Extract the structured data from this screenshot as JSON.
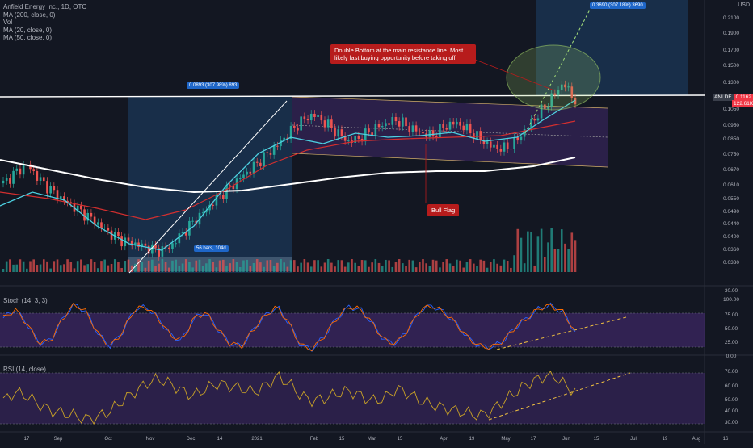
{
  "symbol_line": "Anfield Energy Inc., 1D, OTC",
  "indicators": [
    "Vol",
    "MA (200, close, 0)",
    "MA (20, close, 0)",
    "MA (50, close, 0)"
  ],
  "currency": "USD",
  "stoch_label": "Stoch (14, 3, 3)",
  "rsi_label": "RSI (14, close)",
  "price_tag": {
    "ticker": "ANLDF",
    "value": "0.1162",
    "volume": "122.61K"
  },
  "annotations": {
    "double_bottom": "Double Bottom at the main resistance line. Most likely last buying opportunity before  taking off.",
    "bull_flag": "Bull Flag",
    "measure_left": "0.0893 (307.98%) 893",
    "measure_right": "0.3690 (307.18%) 3690",
    "bars_label": "56 bars, 104d"
  },
  "colors": {
    "background": "#131722",
    "up": "#26a69a",
    "down": "#ef5350",
    "ma200": "#ffffff",
    "ma20": "#4dd0e1",
    "ma50": "#d32f2f",
    "stoch_k": "#2962ff",
    "stoch_d": "#ff6d00",
    "rsi": "#c9a227",
    "band_fill": "#4a2c7a"
  },
  "chart_data": {
    "type": "candlestick",
    "title": "Anfield Energy Inc., 1D, OTC",
    "y_scale": "log",
    "y_ticks": [
      "0.2100",
      "0.1900",
      "0.1700",
      "0.1500",
      "0.1300",
      "0.1050",
      "0.0950",
      "0.0850",
      "0.0750",
      "0.0670",
      "0.0610",
      "0.0550",
      "0.0490",
      "0.0440",
      "0.0400",
      "0.0360",
      "0.0330"
    ],
    "x_ticks": [
      "17",
      "Sep",
      "Oct",
      "Nov",
      "Dec",
      "14",
      "2021",
      "Feb",
      "15",
      "Mar",
      "15",
      "Apr",
      "19",
      "May",
      "17",
      "Jun",
      "15",
      "Jul",
      "19",
      "Aug",
      "16"
    ],
    "stoch_ticks": [
      "100.00",
      "75.00",
      "50.00",
      "25.00",
      "0.00"
    ],
    "rsi_ticks": [
      "70.00",
      "60.00",
      "50.00",
      "40.00",
      "30.00"
    ],
    "vol_tick": "30.00",
    "close_approx": [
      0.06,
      0.065,
      0.069,
      0.062,
      0.057,
      0.053,
      0.05,
      0.047,
      0.044,
      0.041,
      0.039,
      0.038,
      0.037,
      0.036,
      0.037,
      0.041,
      0.045,
      0.049,
      0.054,
      0.058,
      0.063,
      0.068,
      0.074,
      0.08,
      0.088,
      0.096,
      0.101,
      0.095,
      0.088,
      0.082,
      0.085,
      0.09,
      0.094,
      0.097,
      0.092,
      0.088,
      0.086,
      0.092,
      0.095,
      0.09,
      0.084,
      0.079,
      0.078,
      0.082,
      0.092,
      0.102,
      0.114,
      0.128,
      0.112
    ],
    "resistance_level": 0.11,
    "stoch_approx": [
      70,
      85,
      60,
      25,
      30,
      70,
      95,
      80,
      40,
      20,
      45,
      85,
      90,
      70,
      40,
      30,
      70,
      80,
      50,
      25,
      20,
      50,
      75,
      90,
      60,
      20,
      15,
      40,
      70,
      90,
      85,
      60,
      30,
      25,
      50,
      85,
      92,
      80,
      60,
      35,
      20,
      18,
      30,
      55,
      70,
      88,
      92,
      80,
      45
    ],
    "rsi_approx": [
      48,
      55,
      52,
      45,
      40,
      38,
      36,
      33,
      35,
      40,
      48,
      55,
      62,
      66,
      62,
      56,
      52,
      58,
      62,
      60,
      58,
      55,
      60,
      68,
      62,
      52,
      48,
      50,
      54,
      56,
      52,
      48,
      50,
      58,
      54,
      48,
      45,
      42,
      40,
      38,
      36,
      40,
      48,
      55,
      62,
      66,
      70,
      62,
      55
    ]
  }
}
